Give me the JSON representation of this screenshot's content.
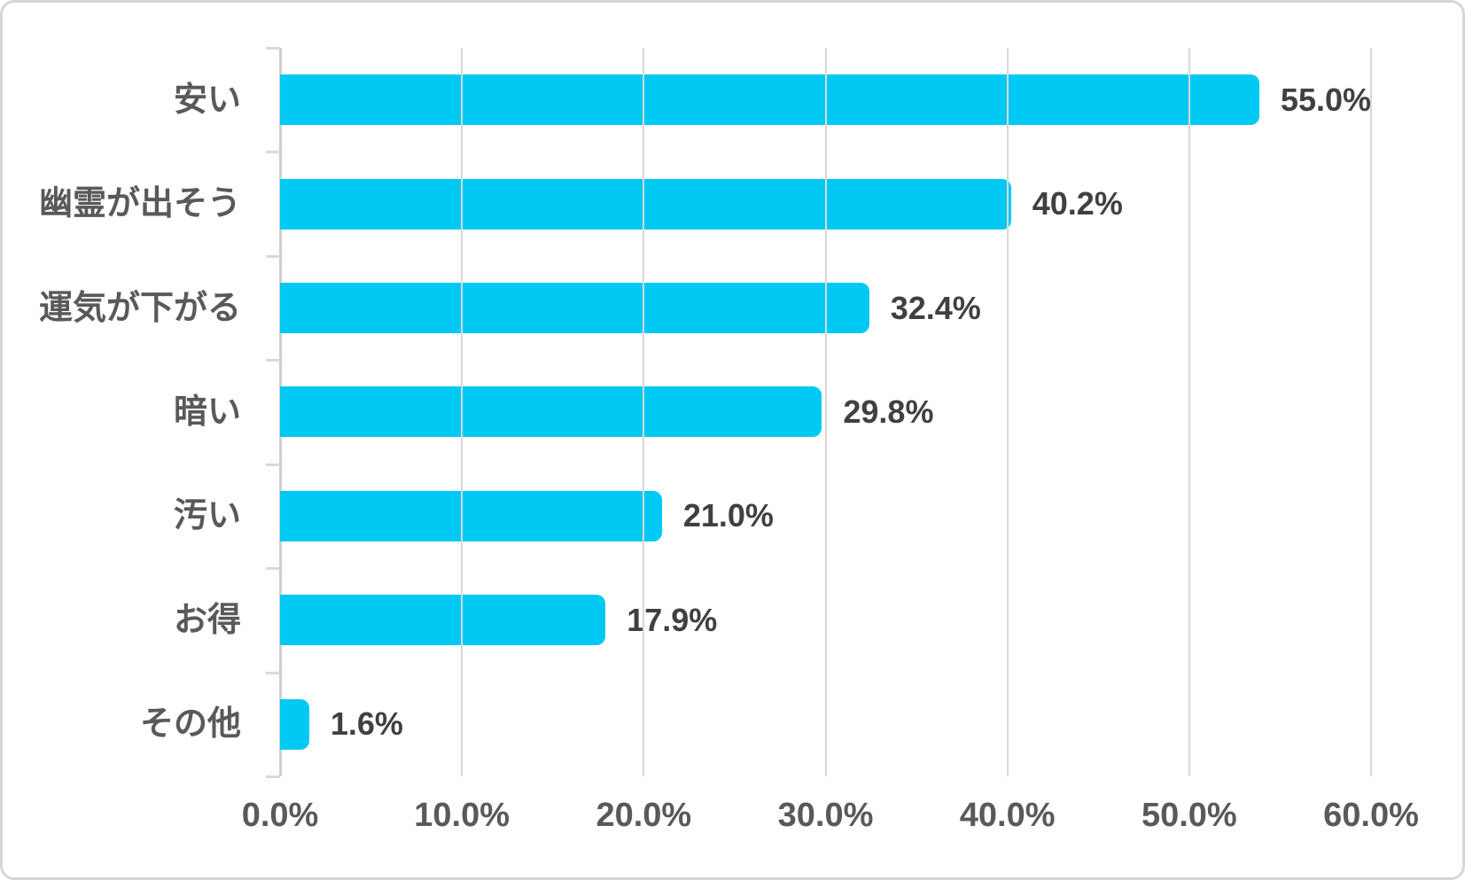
{
  "chart_data": {
    "type": "bar",
    "orientation": "horizontal",
    "title": "",
    "xlabel": "",
    "ylabel": "",
    "categories": [
      "安い",
      "幽霊が出そう",
      "運気が下がる",
      "暗い",
      "汚い",
      "お得",
      "その他"
    ],
    "values": [
      55.0,
      40.2,
      32.4,
      29.8,
      21.0,
      17.9,
      1.6
    ],
    "value_labels": [
      "55.0%",
      "40.2%",
      "32.4%",
      "29.8%",
      "21.0%",
      "17.9%",
      "1.6%"
    ],
    "x_ticks": [
      "0.0%",
      "10.0%",
      "20.0%",
      "30.0%",
      "40.0%",
      "50.0%",
      "60.0%"
    ],
    "x_tick_values": [
      0,
      10,
      20,
      30,
      40,
      50,
      60
    ],
    "xlim": [
      0,
      60
    ],
    "grid": true,
    "legend": "none",
    "colors": {
      "bar": "#00c9f4",
      "category_label": "#595959",
      "value_label": "#404040",
      "axis_label": "#595959",
      "gridline": "#d9d9d9",
      "axis_line": "#cfcfcf",
      "background": "#ffffff",
      "card_border": "#d6d6d6"
    }
  }
}
